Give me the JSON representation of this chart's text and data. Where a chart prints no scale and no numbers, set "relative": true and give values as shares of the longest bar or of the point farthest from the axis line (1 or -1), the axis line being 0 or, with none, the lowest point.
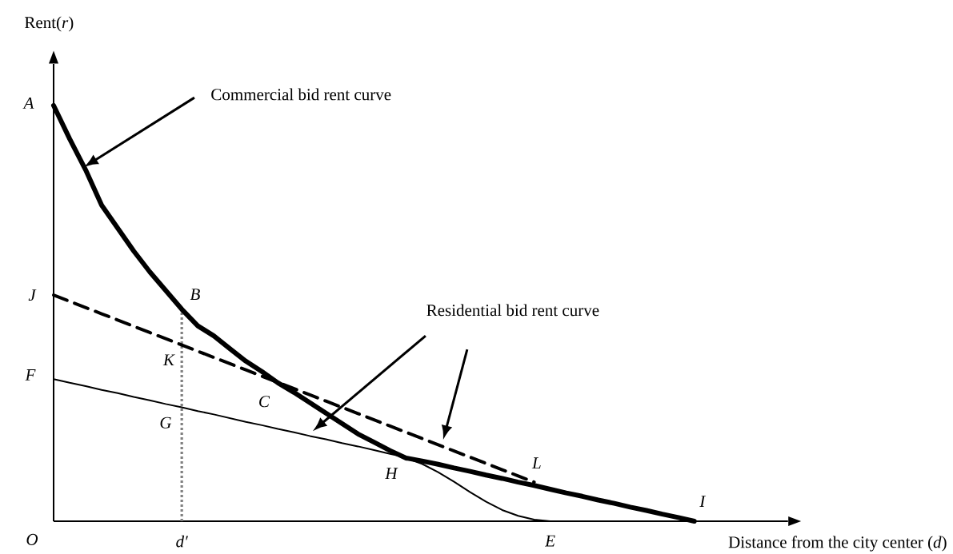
{
  "chart_data": {
    "type": "line",
    "relative": true,
    "xlabel": "Distance from the city center  (*d*)",
    "ylabel": "Rent(*r*)",
    "categories": [
      null,
      null,
      null,
      null,
      null,
      null,
      null,
      null,
      "d′",
      null,
      null,
      null,
      null,
      null,
      null,
      null,
      null,
      null,
      null,
      null,
      null,
      null,
      null,
      null,
      null,
      null,
      null,
      null,
      null,
      null,
      null,
      "E",
      null,
      null,
      null,
      null,
      null,
      null,
      null,
      null,
      null
    ],
    "series": [
      {
        "color": "#000000",
        "values": [
          1.0,
          0.92,
          0.845,
          0.76,
          0.705,
          0.65,
          0.6,
          0.555,
          0.51,
          0.47,
          0.446,
          0.415,
          0.385,
          0.36,
          0.333,
          0.31,
          0.285,
          0.26,
          0.235,
          0.21,
          0.19,
          0.17,
          0.152,
          0.145,
          0.137,
          0.128,
          0.12,
          0.111,
          0.103,
          0.094,
          0.086,
          0.077,
          0.068,
          0.06,
          0.051,
          0.043,
          0.034,
          0.026,
          0.017,
          0.009,
          0
        ]
      },
      {
        "color": "#000000",
        "values": [
          null,
          null,
          null,
          null,
          null,
          null,
          null,
          null,
          null,
          null,
          null,
          null,
          null,
          null,
          null,
          null,
          null,
          null,
          null,
          null,
          null,
          null,
          0.152,
          0.138,
          0.118,
          0.095,
          0.07,
          0.047,
          0.027,
          0.013,
          0.004,
          0,
          null,
          null,
          null,
          null,
          null,
          null,
          null,
          null,
          null
        ]
      },
      {
        "color": "#000000",
        "values": [
          0.342,
          0.333,
          0.325,
          0.316,
          0.308,
          0.299,
          0.291,
          0.282,
          0.274,
          0.265,
          0.257,
          0.248,
          0.239,
          0.231,
          0.222,
          0.214,
          0.205,
          0.197,
          0.188,
          0.18,
          0.171,
          0.162,
          0.154,
          0.145,
          0.137,
          0.128,
          0.12,
          0.111,
          0.103,
          0.094,
          0.086,
          0.077,
          0.068,
          0.06,
          0.051,
          0.043,
          0.034,
          0.026,
          0.017,
          0.009,
          0
        ]
      },
      {
        "color": "#000000",
        "line_style": "dashed",
        "values": [
          0.544,
          0.529,
          0.514,
          0.499,
          0.484,
          0.469,
          0.454,
          0.439,
          0.424,
          0.409,
          0.394,
          0.379,
          0.364,
          0.349,
          0.334,
          0.319,
          0.304,
          0.289,
          0.274,
          0.259,
          0.244,
          0.229,
          0.214,
          0.199,
          0.184,
          0.169,
          0.154,
          0.139,
          0.124,
          0.109,
          0.094,
          null,
          null,
          null,
          null,
          null,
          null,
          null,
          null,
          null,
          null
        ]
      }
    ],
    "ref_lines": [
      {
        "axis": "x",
        "value": "d′",
        "color": "#808080",
        "line_style": "dotted"
      }
    ],
    "annotations": [
      "A",
      "J",
      "F",
      "B",
      "K",
      "G",
      "C",
      "H",
      "L",
      "I",
      "O",
      "Commercial bid rent curve",
      "Residential bid rent curve"
    ]
  }
}
